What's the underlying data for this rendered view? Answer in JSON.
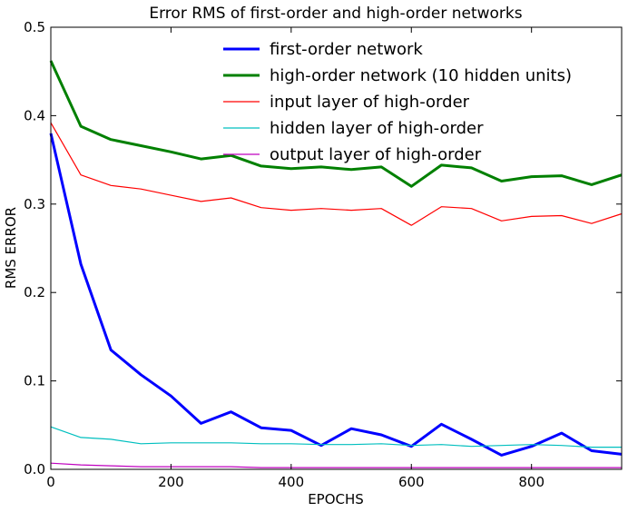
{
  "chart_data": {
    "type": "line",
    "title": "Error RMS of first-order and high-order networks",
    "xlabel": "EPOCHS",
    "ylabel": "RMS ERROR",
    "xlim": [
      0,
      950
    ],
    "ylim": [
      0,
      0.5
    ],
    "xticks": [
      0,
      200,
      400,
      600,
      800
    ],
    "yticks": [
      0.0,
      0.1,
      0.2,
      0.3,
      0.4,
      0.5
    ],
    "xtick_labels": [
      "0",
      "200",
      "400",
      "600",
      "800"
    ],
    "ytick_labels": [
      "0.0",
      "0.1",
      "0.2",
      "0.3",
      "0.4",
      "0.5"
    ],
    "grid": false,
    "legend_position": "top-right",
    "x": [
      0,
      50,
      100,
      150,
      200,
      250,
      300,
      350,
      400,
      450,
      500,
      550,
      600,
      650,
      700,
      750,
      800,
      850,
      900,
      950
    ],
    "series": [
      {
        "name": "first-order network",
        "color": "#0000ff",
        "linewidth": "thick",
        "values": [
          0.38,
          0.232,
          0.135,
          0.107,
          0.083,
          0.052,
          0.065,
          0.047,
          0.044,
          0.027,
          0.046,
          0.039,
          0.026,
          0.051,
          0.034,
          0.016,
          0.026,
          0.041,
          0.021,
          0.017
        ]
      },
      {
        "name": "high-order network (10 hidden units)",
        "color": "#008000",
        "linewidth": "thick",
        "values": [
          0.462,
          0.388,
          0.373,
          0.366,
          0.359,
          0.351,
          0.355,
          0.343,
          0.34,
          0.342,
          0.339,
          0.342,
          0.32,
          0.344,
          0.341,
          0.326,
          0.331,
          0.332,
          0.322,
          0.333
        ]
      },
      {
        "name": "input layer of high-order",
        "color": "#ff0000",
        "linewidth": "thin",
        "values": [
          0.392,
          0.333,
          0.321,
          0.317,
          0.31,
          0.303,
          0.307,
          0.296,
          0.293,
          0.295,
          0.293,
          0.295,
          0.276,
          0.297,
          0.295,
          0.281,
          0.286,
          0.287,
          0.278,
          0.289
        ]
      },
      {
        "name": "hidden layer of high-order",
        "color": "#00bfbf",
        "linewidth": "thin",
        "values": [
          0.048,
          0.036,
          0.034,
          0.029,
          0.03,
          0.03,
          0.03,
          0.029,
          0.029,
          0.028,
          0.028,
          0.029,
          0.027,
          0.028,
          0.026,
          0.027,
          0.028,
          0.027,
          0.025,
          0.025
        ]
      },
      {
        "name": "output layer of high-order",
        "color": "#bf00bf",
        "linewidth": "thin",
        "values": [
          0.007,
          0.005,
          0.004,
          0.003,
          0.003,
          0.003,
          0.003,
          0.002,
          0.002,
          0.002,
          0.002,
          0.002,
          0.002,
          0.002,
          0.002,
          0.002,
          0.002,
          0.002,
          0.002,
          0.002
        ]
      }
    ]
  }
}
